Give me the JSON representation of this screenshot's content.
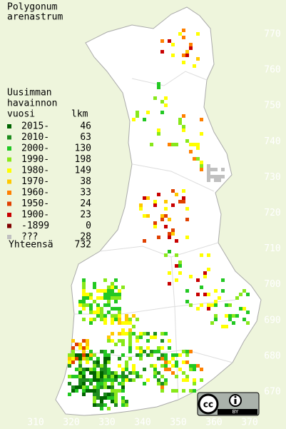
{
  "title": [
    "Polygonum",
    "arenastrum"
  ],
  "legend": {
    "heading": [
      "Uusimman",
      "havainnon"
    ],
    "column_year": "vuosi",
    "column_count": "lkm",
    "entries": [
      {
        "label": "2015-",
        "count": 46,
        "color": "#006400"
      },
      {
        "label": "2010-",
        "count": 63,
        "color": "#1e8c1e"
      },
      {
        "label": "2000-",
        "count": 130,
        "color": "#22c822"
      },
      {
        "label": "1990-",
        "count": 198,
        "color": "#88e81a"
      },
      {
        "label": "1980-",
        "count": 149,
        "color": "#ffff00"
      },
      {
        "label": "1970-",
        "count": 38,
        "color": "#ffc800"
      },
      {
        "label": "1960-",
        "count": 33,
        "color": "#ff8000"
      },
      {
        "label": "1950-",
        "count": 24,
        "color": "#e04000"
      },
      {
        "label": "1900-",
        "count": 23,
        "color": "#c80000"
      },
      {
        "label": "-1899",
        "count": 0,
        "color": "#800000"
      },
      {
        "label": "???",
        "count": 28,
        "color": "#c0c0c0"
      }
    ],
    "total_label": "Yhteensä",
    "total": 732
  },
  "x_labels": [
    310,
    320,
    330,
    340,
    350,
    360,
    370
  ],
  "y_labels": [
    770,
    760,
    750,
    740,
    730,
    720,
    710,
    700,
    690,
    680,
    670
  ],
  "license": {
    "cc": "cc",
    "by": "BY"
  }
}
